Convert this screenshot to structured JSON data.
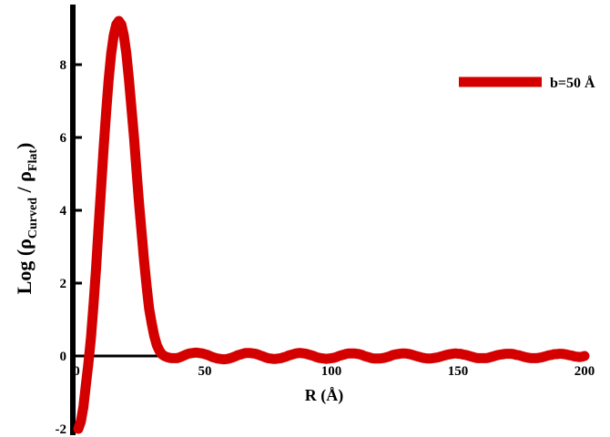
{
  "chart_data": {
    "type": "line",
    "title": "",
    "xlabel": "R (Å)",
    "ylabel": "Log (ρCurved / ρFlat)",
    "ylabel_parts": {
      "prefix": "Log (ρ",
      "sub1": "Curved",
      "mid": " / ρ",
      "sub2": "Flat",
      "suffix": ")"
    },
    "xlim": [
      0,
      200
    ],
    "ylim": [
      -2,
      9.5
    ],
    "x_ticks": [
      "0",
      "50",
      "100",
      "150",
      "200"
    ],
    "y_ticks": [
      "-2",
      "0",
      "2",
      "4",
      "6",
      "8"
    ],
    "grid": false,
    "legend_position": "top-right",
    "series": [
      {
        "name": "b=50 Å",
        "color": "#d40000",
        "points": [
          [
            0,
            -2.0
          ],
          [
            1,
            -1.8
          ],
          [
            2,
            -1.4
          ],
          [
            3,
            -0.8
          ],
          [
            4,
            -0.2
          ],
          [
            5,
            0.5
          ],
          [
            6,
            1.4
          ],
          [
            7,
            2.4
          ],
          [
            8,
            3.5
          ],
          [
            9,
            4.6
          ],
          [
            10,
            5.7
          ],
          [
            11,
            6.7
          ],
          [
            12,
            7.6
          ],
          [
            13,
            8.3
          ],
          [
            14,
            8.8
          ],
          [
            15,
            9.1
          ],
          [
            16,
            9.2
          ],
          [
            17,
            9.1
          ],
          [
            18,
            8.8
          ],
          [
            19,
            8.3
          ],
          [
            20,
            7.6
          ],
          [
            21,
            6.8
          ],
          [
            22,
            6.0
          ],
          [
            23,
            5.1
          ],
          [
            24,
            4.2
          ],
          [
            25,
            3.4
          ],
          [
            26,
            2.6
          ],
          [
            27,
            1.9
          ],
          [
            28,
            1.3
          ],
          [
            29,
            0.9
          ],
          [
            30,
            0.55
          ],
          [
            31,
            0.3
          ],
          [
            32,
            0.15
          ],
          [
            33,
            0.05
          ],
          [
            34,
            0.0
          ],
          [
            35,
            -0.03
          ],
          [
            36,
            -0.05
          ],
          [
            37,
            -0.06
          ],
          [
            38,
            -0.06
          ],
          [
            39,
            -0.06
          ],
          [
            40,
            -0.04
          ],
          [
            41,
            -0.01
          ],
          [
            42,
            0.02
          ],
          [
            43,
            0.05
          ],
          [
            44,
            0.07
          ],
          [
            45,
            0.08
          ],
          [
            46,
            0.09
          ],
          [
            47,
            0.09
          ],
          [
            48,
            0.08
          ],
          [
            49,
            0.07
          ],
          [
            50,
            0.05
          ],
          [
            51,
            0.03
          ],
          [
            52,
            0.0
          ],
          [
            53,
            -0.03
          ],
          [
            54,
            -0.05
          ],
          [
            55,
            -0.07
          ],
          [
            56,
            -0.08
          ],
          [
            57,
            -0.09
          ],
          [
            58,
            -0.09
          ],
          [
            59,
            -0.08
          ],
          [
            60,
            -0.06
          ],
          [
            61,
            -0.04
          ],
          [
            62,
            -0.01
          ],
          [
            63,
            0.02
          ],
          [
            64,
            0.04
          ],
          [
            65,
            0.06
          ],
          [
            66,
            0.08
          ],
          [
            67,
            0.08
          ],
          [
            68,
            0.08
          ],
          [
            69,
            0.07
          ],
          [
            70,
            0.06
          ],
          [
            71,
            0.04
          ],
          [
            72,
            0.01
          ],
          [
            73,
            -0.01
          ],
          [
            74,
            -0.04
          ],
          [
            75,
            -0.06
          ],
          [
            76,
            -0.07
          ],
          [
            77,
            -0.08
          ],
          [
            78,
            -0.08
          ],
          [
            79,
            -0.07
          ],
          [
            80,
            -0.06
          ],
          [
            81,
            -0.04
          ],
          [
            82,
            -0.02
          ],
          [
            83,
            0.01
          ],
          [
            84,
            0.03
          ],
          [
            85,
            0.05
          ],
          [
            86,
            0.07
          ],
          [
            87,
            0.08
          ],
          [
            88,
            0.08
          ],
          [
            89,
            0.07
          ],
          [
            90,
            0.06
          ],
          [
            91,
            0.04
          ],
          [
            92,
            0.02
          ],
          [
            93,
            0.0
          ],
          [
            94,
            -0.03
          ],
          [
            95,
            -0.05
          ],
          [
            96,
            -0.06
          ],
          [
            97,
            -0.07
          ],
          [
            98,
            -0.08
          ],
          [
            99,
            -0.07
          ],
          [
            100,
            -0.06
          ],
          [
            101,
            -0.05
          ],
          [
            102,
            -0.03
          ],
          [
            103,
            0.0
          ],
          [
            104,
            0.02
          ],
          [
            105,
            0.04
          ],
          [
            106,
            0.06
          ],
          [
            107,
            0.07
          ],
          [
            108,
            0.07
          ],
          [
            109,
            0.07
          ],
          [
            110,
            0.06
          ],
          [
            111,
            0.05
          ],
          [
            112,
            0.03
          ],
          [
            113,
            0.0
          ],
          [
            114,
            -0.02
          ],
          [
            115,
            -0.04
          ],
          [
            116,
            -0.06
          ],
          [
            117,
            -0.07
          ],
          [
            118,
            -0.07
          ],
          [
            119,
            -0.07
          ],
          [
            120,
            -0.06
          ],
          [
            121,
            -0.05
          ],
          [
            122,
            -0.03
          ],
          [
            123,
            -0.01
          ],
          [
            124,
            0.02
          ],
          [
            125,
            0.04
          ],
          [
            126,
            0.05
          ],
          [
            127,
            0.06
          ],
          [
            128,
            0.07
          ],
          [
            129,
            0.07
          ],
          [
            130,
            0.06
          ],
          [
            131,
            0.05
          ],
          [
            132,
            0.03
          ],
          [
            133,
            0.01
          ],
          [
            134,
            -0.01
          ],
          [
            135,
            -0.03
          ],
          [
            136,
            -0.05
          ],
          [
            137,
            -0.06
          ],
          [
            138,
            -0.07
          ],
          [
            139,
            -0.07
          ],
          [
            140,
            -0.06
          ],
          [
            141,
            -0.05
          ],
          [
            142,
            -0.04
          ],
          [
            143,
            -0.02
          ],
          [
            144,
            0.0
          ],
          [
            145,
            0.02
          ],
          [
            146,
            0.04
          ],
          [
            147,
            0.05
          ],
          [
            148,
            0.06
          ],
          [
            149,
            0.07
          ],
          [
            150,
            0.06
          ],
          [
            151,
            0.06
          ],
          [
            152,
            0.04
          ],
          [
            153,
            0.03
          ],
          [
            154,
            0.01
          ],
          [
            155,
            -0.01
          ],
          [
            156,
            -0.03
          ],
          [
            157,
            -0.05
          ],
          [
            158,
            -0.06
          ],
          [
            159,
            -0.06
          ],
          [
            160,
            -0.06
          ],
          [
            161,
            -0.06
          ],
          [
            162,
            -0.05
          ],
          [
            163,
            -0.03
          ],
          [
            164,
            -0.01
          ],
          [
            165,
            0.01
          ],
          [
            166,
            0.03
          ],
          [
            167,
            0.04
          ],
          [
            168,
            0.05
          ],
          [
            169,
            0.06
          ],
          [
            170,
            0.06
          ],
          [
            171,
            0.06
          ],
          [
            172,
            0.05
          ],
          [
            173,
            0.03
          ],
          [
            174,
            0.02
          ],
          [
            175,
            0.0
          ],
          [
            176,
            -0.02
          ],
          [
            177,
            -0.04
          ],
          [
            178,
            -0.05
          ],
          [
            179,
            -0.06
          ],
          [
            180,
            -0.06
          ],
          [
            181,
            -0.06
          ],
          [
            182,
            -0.05
          ],
          [
            183,
            -0.04
          ],
          [
            184,
            -0.02
          ],
          [
            185,
            0.0
          ],
          [
            186,
            0.02
          ],
          [
            187,
            0.03
          ],
          [
            188,
            0.05
          ],
          [
            189,
            0.05
          ],
          [
            190,
            0.06
          ],
          [
            191,
            0.06
          ],
          [
            192,
            0.05
          ],
          [
            193,
            0.04
          ],
          [
            194,
            0.02
          ],
          [
            195,
            0.01
          ],
          [
            196,
            -0.01
          ],
          [
            197,
            -0.02
          ],
          [
            198,
            -0.03
          ],
          [
            199,
            -0.02
          ],
          [
            200,
            0.0
          ]
        ]
      }
    ]
  }
}
